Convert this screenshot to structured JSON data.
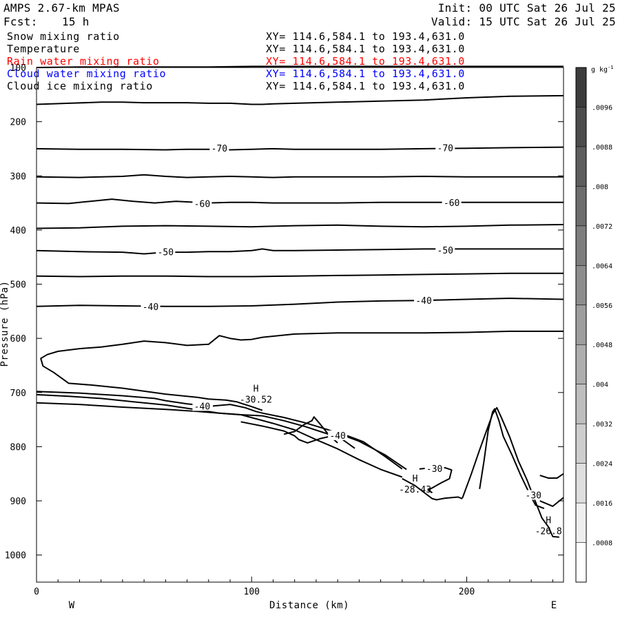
{
  "header": {
    "model": "AMPS 2.67-km MPAS",
    "init": "Init: 00 UTC Sat 26 Jul 25",
    "fcst_label": "Fcst:",
    "fcst_value": "15 h",
    "valid": "Valid: 15 UTC Sat 26 Jul 25"
  },
  "legend": [
    {
      "label": "Snow mixing ratio",
      "xy": "XY= 114.6,584.1 to 193.4,631.0",
      "color": "#000000"
    },
    {
      "label": "Temperature",
      "xy": "XY= 114.6,584.1 to 193.4,631.0",
      "color": "#000000"
    },
    {
      "label": "Rain water mixing ratio",
      "xy": "XY= 114.6,584.1 to 193.4,631.0",
      "color": "#ff0000"
    },
    {
      "label": "Cloud water mixing ratio",
      "xy": "XY= 114.6,584.1 to 193.4,631.0",
      "color": "#0000ff"
    },
    {
      "label": "Cloud ice mixing ratio",
      "xy": "XY= 114.6,584.1 to 193.4,631.0",
      "color": "#000000"
    }
  ],
  "chart_data": {
    "type": "line",
    "xlabel": "Distance (km)",
    "ylabel": "Pressure (hPa)",
    "xlim": [
      0,
      245
    ],
    "ylim": [
      1050,
      100
    ],
    "xticks": [
      0,
      100,
      200
    ],
    "yticks": [
      100,
      200,
      300,
      400,
      500,
      600,
      700,
      800,
      900,
      1000
    ],
    "x_end_labels": {
      "left": "W",
      "right": "E"
    },
    "colorbar": {
      "unit": "g kg",
      "unit_exp": "-1",
      "ticks": [
        ".0096",
        ".0088",
        ".008",
        ".0072",
        ".0064",
        ".0056",
        ".0048",
        ".004",
        ".0032",
        ".0024",
        ".0016",
        ".0008"
      ]
    },
    "temperature_contours": [
      {
        "level": -70,
        "x": [
          0,
          20,
          40,
          60,
          70,
          80,
          90,
          100,
          110,
          120,
          140,
          160,
          180,
          200,
          220,
          245
        ],
        "p": [
          250,
          251,
          251,
          252,
          251,
          251,
          252,
          251,
          250,
          251,
          251,
          251,
          250,
          249,
          248,
          247
        ]
      },
      {
        "level": -70,
        "x": [
          0,
          15,
          30,
          40,
          50,
          60,
          70,
          80,
          90,
          100,
          105,
          110,
          120,
          140,
          160,
          180,
          200,
          220,
          245
        ],
        "p": [
          168,
          166,
          164,
          164,
          165,
          165,
          165,
          166,
          166,
          168,
          168,
          167,
          166,
          164,
          162,
          160,
          156,
          153,
          152
        ]
      },
      {
        "level": -60,
        "x": [
          0,
          20,
          40,
          50,
          60,
          70,
          80,
          90,
          100,
          110,
          120,
          140,
          160,
          180,
          200,
          220,
          245
        ],
        "p": [
          302,
          303,
          301,
          298,
          301,
          303,
          302,
          301,
          302,
          303,
          302,
          302,
          302,
          301,
          302,
          302,
          302
        ]
      },
      {
        "level": -60,
        "x": [
          0,
          15,
          25,
          35,
          45,
          55,
          65,
          80,
          90,
          100,
          110,
          120,
          140,
          160,
          180,
          200,
          220,
          245
        ],
        "p": [
          350,
          351,
          347,
          343,
          347,
          350,
          347,
          350,
          349,
          349,
          350,
          350,
          350,
          349,
          349,
          349,
          349,
          349
        ]
      },
      {
        "level": -50,
        "x": [
          0,
          20,
          40,
          60,
          80,
          100,
          120,
          140,
          160,
          180,
          200,
          220,
          245
        ],
        "p": [
          397,
          396,
          393,
          392,
          393,
          394,
          392,
          391,
          393,
          394,
          393,
          391,
          390
        ]
      },
      {
        "level": -50,
        "x": [
          0,
          20,
          40,
          50,
          60,
          70,
          80,
          90,
          100,
          105,
          110,
          120,
          140,
          160,
          180,
          200,
          220,
          245
        ],
        "p": [
          438,
          440,
          441,
          444,
          441,
          441,
          440,
          440,
          438,
          435,
          438,
          438,
          437,
          436,
          435,
          435,
          435,
          435
        ]
      },
      {
        "level": -40,
        "x": [
          0,
          20,
          40,
          60,
          80,
          100,
          120,
          140,
          160,
          180,
          200,
          220,
          245
        ],
        "p": [
          485,
          486,
          485,
          485,
          486,
          486,
          485,
          484,
          483,
          482,
          481,
          480,
          480
        ]
      },
      {
        "level": -40,
        "x": [
          0,
          20,
          40,
          60,
          80,
          100,
          120,
          140,
          160,
          180,
          200,
          220,
          245
        ],
        "p": [
          541,
          539,
          540,
          541,
          541,
          540,
          537,
          533,
          531,
          530,
          528,
          526,
          528
        ]
      },
      {
        "level": -40,
        "x": [
          245,
          220,
          200,
          180,
          160,
          140,
          120,
          105,
          100,
          95,
          90,
          85,
          80,
          70,
          60,
          50,
          40,
          30,
          20,
          10,
          5,
          2,
          3,
          8,
          15,
          25,
          40,
          60,
          75,
          80,
          88,
          93,
          96,
          100,
          105
        ],
        "p": [
          587,
          587,
          589,
          590,
          590,
          590,
          592,
          598,
          602,
          603,
          600,
          595,
          611,
          613,
          608,
          605,
          611,
          616,
          619,
          624,
          630,
          637,
          651,
          663,
          683,
          686,
          692,
          703,
          709,
          712,
          714,
          717,
          721,
          726,
          733
        ]
      },
      {
        "level": -40,
        "x": [
          0,
          20,
          40,
          55,
          60,
          70,
          75,
          80
        ],
        "p": [
          698,
          701,
          706,
          711,
          715,
          721,
          723,
          725
        ]
      },
      {
        "level": -40,
        "x": [
          82,
          90,
          97,
          102,
          105,
          115,
          125,
          135,
          140,
          150,
          162,
          172
        ],
        "p": [
          725,
          722,
          728,
          735,
          738,
          746,
          756,
          768,
          775,
          790,
          815,
          842
        ]
      },
      {
        "level": -40,
        "x": [
          0,
          15,
          30,
          45,
          60,
          75,
          85,
          95,
          110,
          120,
          130,
          140,
          150,
          160,
          170
        ],
        "p": [
          704,
          707,
          711,
          717,
          723,
          732,
          738,
          741,
          757,
          769,
          787,
          804,
          824,
          842,
          856
        ]
      },
      {
        "level": -40,
        "x": [
          0,
          20,
          40,
          60,
          75,
          85,
          95,
          105,
          115,
          125,
          135,
          142,
          148
        ],
        "p": [
          719,
          722,
          727,
          731,
          735,
          738,
          741,
          743,
          752,
          763,
          776,
          786,
          803
        ]
      },
      {
        "level": -40,
        "x": [
          95,
          105,
          115,
          120,
          122,
          126,
          132,
          142,
          152,
          162,
          170
        ],
        "p": [
          754,
          762,
          771,
          780,
          787,
          793,
          785,
          776,
          791,
          818,
          841
        ]
      },
      {
        "level": -40,
        "x": [
          115,
          120,
          124,
          128,
          129,
          132,
          136,
          140
        ],
        "p": [
          777,
          772,
          760,
          752,
          745,
          759,
          779,
          793
        ]
      },
      {
        "level": -30,
        "x": [
          170,
          176,
          184,
          186,
          190,
          196,
          198
        ],
        "p": [
          859,
          872,
          896,
          898,
          895,
          893,
          896
        ]
      },
      {
        "level": -30,
        "x": [
          198,
          202,
          206,
          210,
          212,
          214,
          216,
          220,
          224,
          228,
          232,
          235,
          238,
          240,
          243
        ],
        "p": [
          895,
          852,
          806,
          762,
          740,
          728,
          745,
          782,
          826,
          861,
          902,
          932,
          948,
          966,
          967
        ]
      },
      {
        "level": -30,
        "x": [
          206,
          208,
          210,
          212,
          213,
          215,
          217,
          221,
          225,
          229,
          232,
          236
        ],
        "p": [
          878,
          827,
          770,
          736,
          730,
          752,
          781,
          815,
          852,
          885,
          908,
          914
        ]
      },
      {
        "level": -30,
        "x": [
          178,
          186,
          190,
          193,
          192,
          188,
          184,
          182,
          184
        ],
        "p": [
          841,
          838,
          839,
          843,
          859,
          867,
          876,
          880,
          885
        ]
      },
      {
        "level": -30,
        "x": [
          234,
          240,
          245
        ],
        "p": [
          900,
          910,
          894
        ]
      },
      {
        "level": -30,
        "x": [
          234,
          238,
          242,
          245
        ],
        "p": [
          853,
          858,
          858,
          850
        ]
      }
    ],
    "ground_line": [
      {
        "x": [
          0,
          20,
          40,
          60,
          80,
          100,
          120,
          140,
          160,
          180,
          200,
          220,
          245
        ],
        "p": [
          100,
          99,
          99,
          99,
          99,
          98,
          98,
          98,
          98,
          98,
          98,
          98,
          98
        ]
      }
    ],
    "contour_labels": [
      {
        "text": "-70",
        "x": 85,
        "p": 249
      },
      {
        "text": "-70",
        "x": 190,
        "p": 248
      },
      {
        "text": "-60",
        "x": 77,
        "p": 351
      },
      {
        "text": "-60",
        "x": 193,
        "p": 349
      },
      {
        "text": "-50",
        "x": 60,
        "p": 440
      },
      {
        "text": "-50",
        "x": 190,
        "p": 437
      },
      {
        "text": "-40",
        "x": 53,
        "p": 541
      },
      {
        "text": "-40",
        "x": 180,
        "p": 530
      },
      {
        "text": "-40",
        "x": 77,
        "p": 725
      },
      {
        "text": "-40",
        "x": 140,
        "p": 779
      },
      {
        "text": "-30",
        "x": 185,
        "p": 840
      },
      {
        "text": "-30",
        "x": 231,
        "p": 889
      }
    ],
    "extrema": [
      {
        "symbol": "H",
        "value": "-30.52",
        "x": 102,
        "p": 702
      },
      {
        "symbol": "H",
        "value": "-28.43",
        "x": 176,
        "p": 868
      },
      {
        "symbol": "H",
        "value": "-26.8",
        "x": 238,
        "p": 945
      }
    ]
  }
}
